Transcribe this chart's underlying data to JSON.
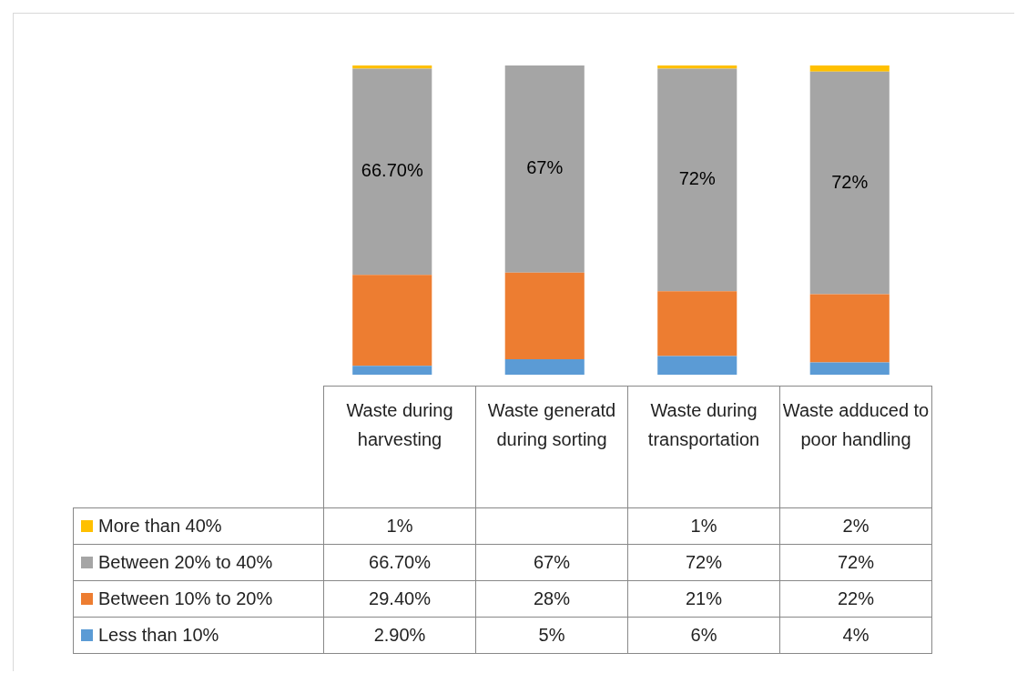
{
  "chart_data": {
    "type": "bar",
    "stacked": true,
    "legend": "bottom left",
    "categories": [
      "Waste during harvesting",
      "Waste generatd during sorting",
      "Waste during transportation",
      "Waste adduced to poor handling"
    ],
    "series": [
      {
        "name": "Less than 10%",
        "color": "#5b9bd5",
        "values": [
          2.9,
          5,
          6,
          4
        ],
        "value_labels": [
          "2.90%",
          "5%",
          "6%",
          "4%"
        ]
      },
      {
        "name": "Between 10% to 20%",
        "color": "#ed7d31",
        "values": [
          29.4,
          28,
          21,
          22
        ],
        "value_labels": [
          "29.40%",
          "28%",
          "21%",
          "22%"
        ]
      },
      {
        "name": "Between 20% to 40%",
        "color": "#a5a5a5",
        "values": [
          66.7,
          67,
          72,
          72
        ],
        "value_labels": [
          "66.70%",
          "67%",
          "72%",
          "72%"
        ],
        "data_labels": true
      },
      {
        "name": "More than 40%",
        "color": "#ffc000",
        "values": [
          1,
          null,
          1,
          2
        ],
        "value_labels": [
          "1%",
          null,
          "1%",
          "2%"
        ]
      }
    ]
  }
}
